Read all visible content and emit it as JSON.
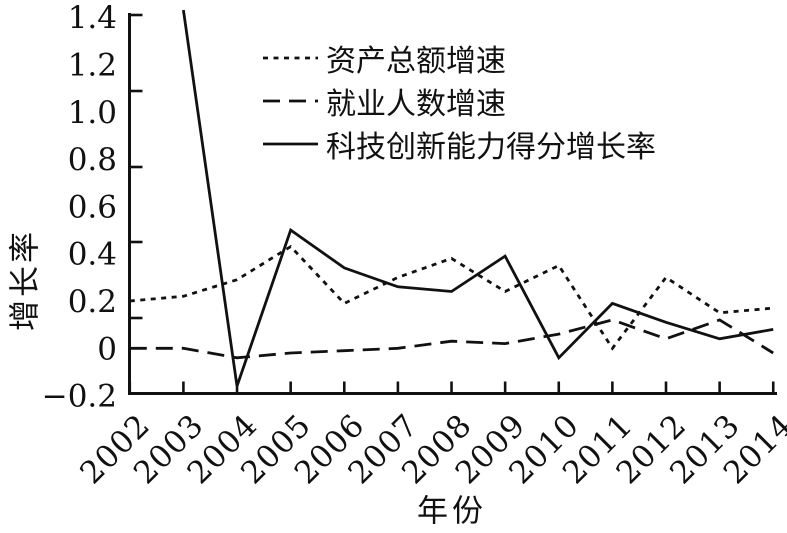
{
  "chart_data": {
    "type": "line",
    "title": "",
    "xlabel": "年份",
    "ylabel": "增长率",
    "categories": [
      "2002",
      "2003",
      "2004",
      "2005",
      "2006",
      "2007",
      "2008",
      "2009",
      "2010",
      "2011",
      "2012",
      "2013",
      "2014"
    ],
    "series": [
      {
        "name": "资产总额增速",
        "style": "dotted",
        "values": [
          0.2,
          0.22,
          0.29,
          0.43,
          0.19,
          0.3,
          0.38,
          0.24,
          0.35,
          0.0,
          0.3,
          0.15,
          0.17
        ]
      },
      {
        "name": "就业人数增速",
        "style": "dashed",
        "values": [
          0.0,
          0.0,
          -0.04,
          -0.02,
          -0.01,
          0.0,
          0.03,
          0.02,
          0.06,
          0.12,
          0.04,
          0.12,
          -0.02
        ]
      },
      {
        "name": "科技创新能力得分增长率",
        "style": "solid",
        "values": [
          null,
          1.43,
          -0.16,
          0.5,
          0.34,
          0.26,
          0.24,
          0.39,
          -0.04,
          0.19,
          0.11,
          0.04,
          0.08
        ]
      }
    ],
    "ylim": [
      -0.2,
      1.4
    ],
    "y_ticks": [
      "1.4",
      "1.2",
      "1.0",
      "0.8",
      "0.6",
      "0.4",
      "0.2",
      "0",
      "−0.2"
    ],
    "grid": false,
    "legend_position": "top-center",
    "line_color": "#111111",
    "background_color": "#ffffff"
  }
}
